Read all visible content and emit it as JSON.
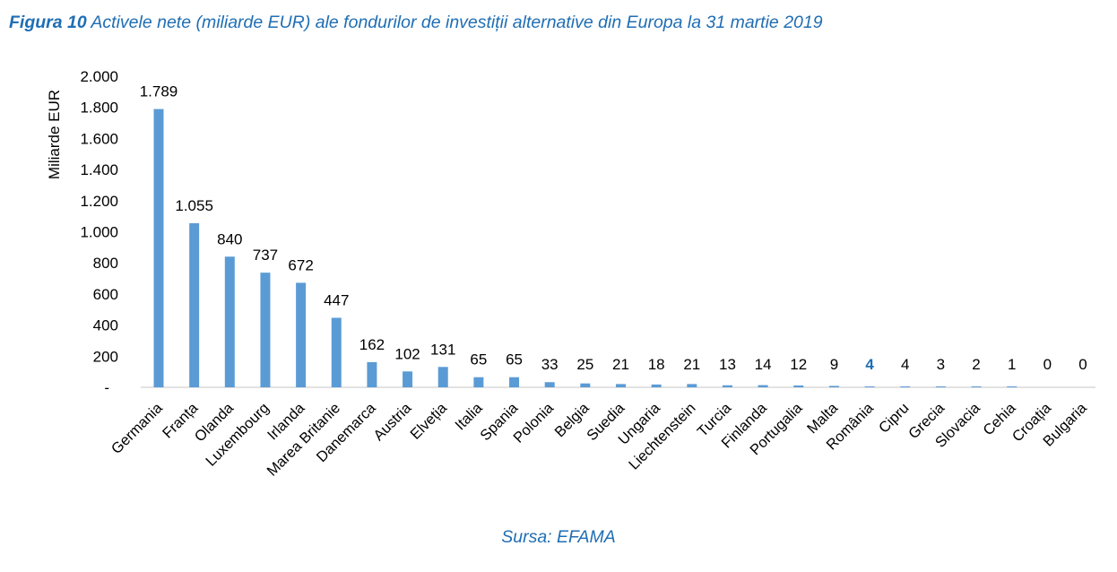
{
  "figure": {
    "number": "Figura 10",
    "title": "Activele nete (miliarde EUR) ale fondurilor de investiții alternative din Europa la 31 martie 2019",
    "source": "Sursa: EFAMA"
  },
  "colors": {
    "bar": "#5b9bd5",
    "highlight_label": "#1f6eb4",
    "title": "#1f6eb4",
    "text": "#000000",
    "axis": "#d9d9d9"
  },
  "chart_data": {
    "type": "bar",
    "ylabel": "Miliarde EUR",
    "xlabel": "",
    "ylim": [
      0,
      2000
    ],
    "yticks": [
      0,
      200,
      400,
      600,
      800,
      1000,
      1200,
      1400,
      1600,
      1800,
      2000
    ],
    "ytick_labels": [
      "-",
      "200",
      "400",
      "600",
      "800",
      "1.000",
      "1.200",
      "1.400",
      "1.600",
      "1.800",
      "2.000"
    ],
    "categories": [
      "Germania",
      "Franța",
      "Olanda",
      "Luxembourg",
      "Irlanda",
      "Marea Britanie",
      "Danemarca",
      "Austria",
      "Elveția",
      "Italia",
      "Spania",
      "Polonia",
      "Belgia",
      "Suedia",
      "Ungaria",
      "Liechtenstein",
      "Turcia",
      "Finlanda",
      "Portugalia",
      "Malta",
      "România",
      "Cipru",
      "Grecia",
      "Slovacia",
      "Cehia",
      "Croația",
      "Bulgaria"
    ],
    "values": [
      1789,
      1055,
      840,
      737,
      672,
      447,
      162,
      102,
      131,
      65,
      65,
      33,
      25,
      21,
      18,
      21,
      13,
      14,
      12,
      9,
      4,
      4,
      3,
      2,
      1,
      0,
      0
    ],
    "data_labels": [
      "1.789",
      "1.055",
      "840",
      "737",
      "672",
      "447",
      "162",
      "102",
      "131",
      "65",
      "65",
      "33",
      "25",
      "21",
      "18",
      "21",
      "13",
      "14",
      "12",
      "9",
      "4",
      "4",
      "3",
      "2",
      "1",
      "0",
      "0"
    ],
    "highlight_category": "România",
    "grid": false,
    "legend": "none"
  }
}
